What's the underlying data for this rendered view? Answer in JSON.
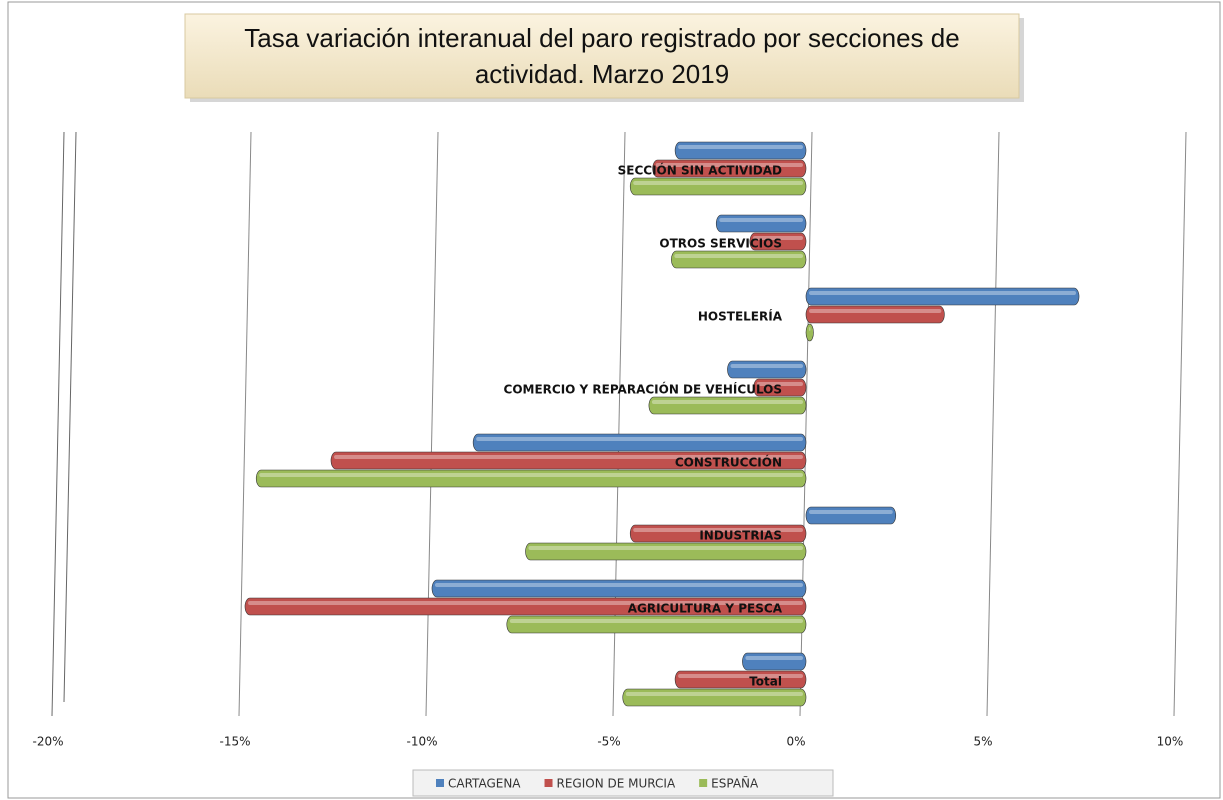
{
  "chart_data": {
    "type": "bar",
    "orientation": "horizontal",
    "title_lines": [
      "Tasa variación interanual del paro registrado por secciones de",
      "actividad. Marzo 2019"
    ],
    "categories": [
      "SECCIÓN SIN ACTIVIDAD",
      "OTROS SERVICIOS",
      "HOSTELERÍA",
      "COMERCIO Y REPARACIÓN DE VEHÍCULOS",
      "CONSTRUCCIÓN",
      "INDUSTRIAS",
      "AGRICULTURA Y PESCA",
      "Total"
    ],
    "series": [
      {
        "name": "CARTAGENA",
        "color": "#4f81bd",
        "values": [
          -3.5,
          -2.4,
          7.3,
          -2.1,
          -8.9,
          2.4,
          -10.0,
          -1.7
        ]
      },
      {
        "name": "REGION DE MURCIA",
        "color": "#c0504d",
        "values": [
          -4.1,
          -1.5,
          3.7,
          -1.4,
          -12.7,
          -4.7,
          -15.0,
          -3.5
        ]
      },
      {
        "name": "ESPAÑA",
        "color": "#9bbb59",
        "values": [
          -4.7,
          -3.6,
          0.2,
          -4.2,
          -14.7,
          -7.5,
          -8.0,
          -4.9
        ]
      }
    ],
    "xlim": [
      -20,
      10
    ],
    "xticks": [
      {
        "value": -20,
        "label": "-20%"
      },
      {
        "value": -15,
        "label": "-15%"
      },
      {
        "value": -10,
        "label": "-10%"
      },
      {
        "value": -5,
        "label": "-5%"
      },
      {
        "value": 0,
        "label": "0%"
      },
      {
        "value": 5,
        "label": "5%"
      },
      {
        "value": 10,
        "label": "10%"
      }
    ],
    "grid": true,
    "legend": "bottom"
  }
}
